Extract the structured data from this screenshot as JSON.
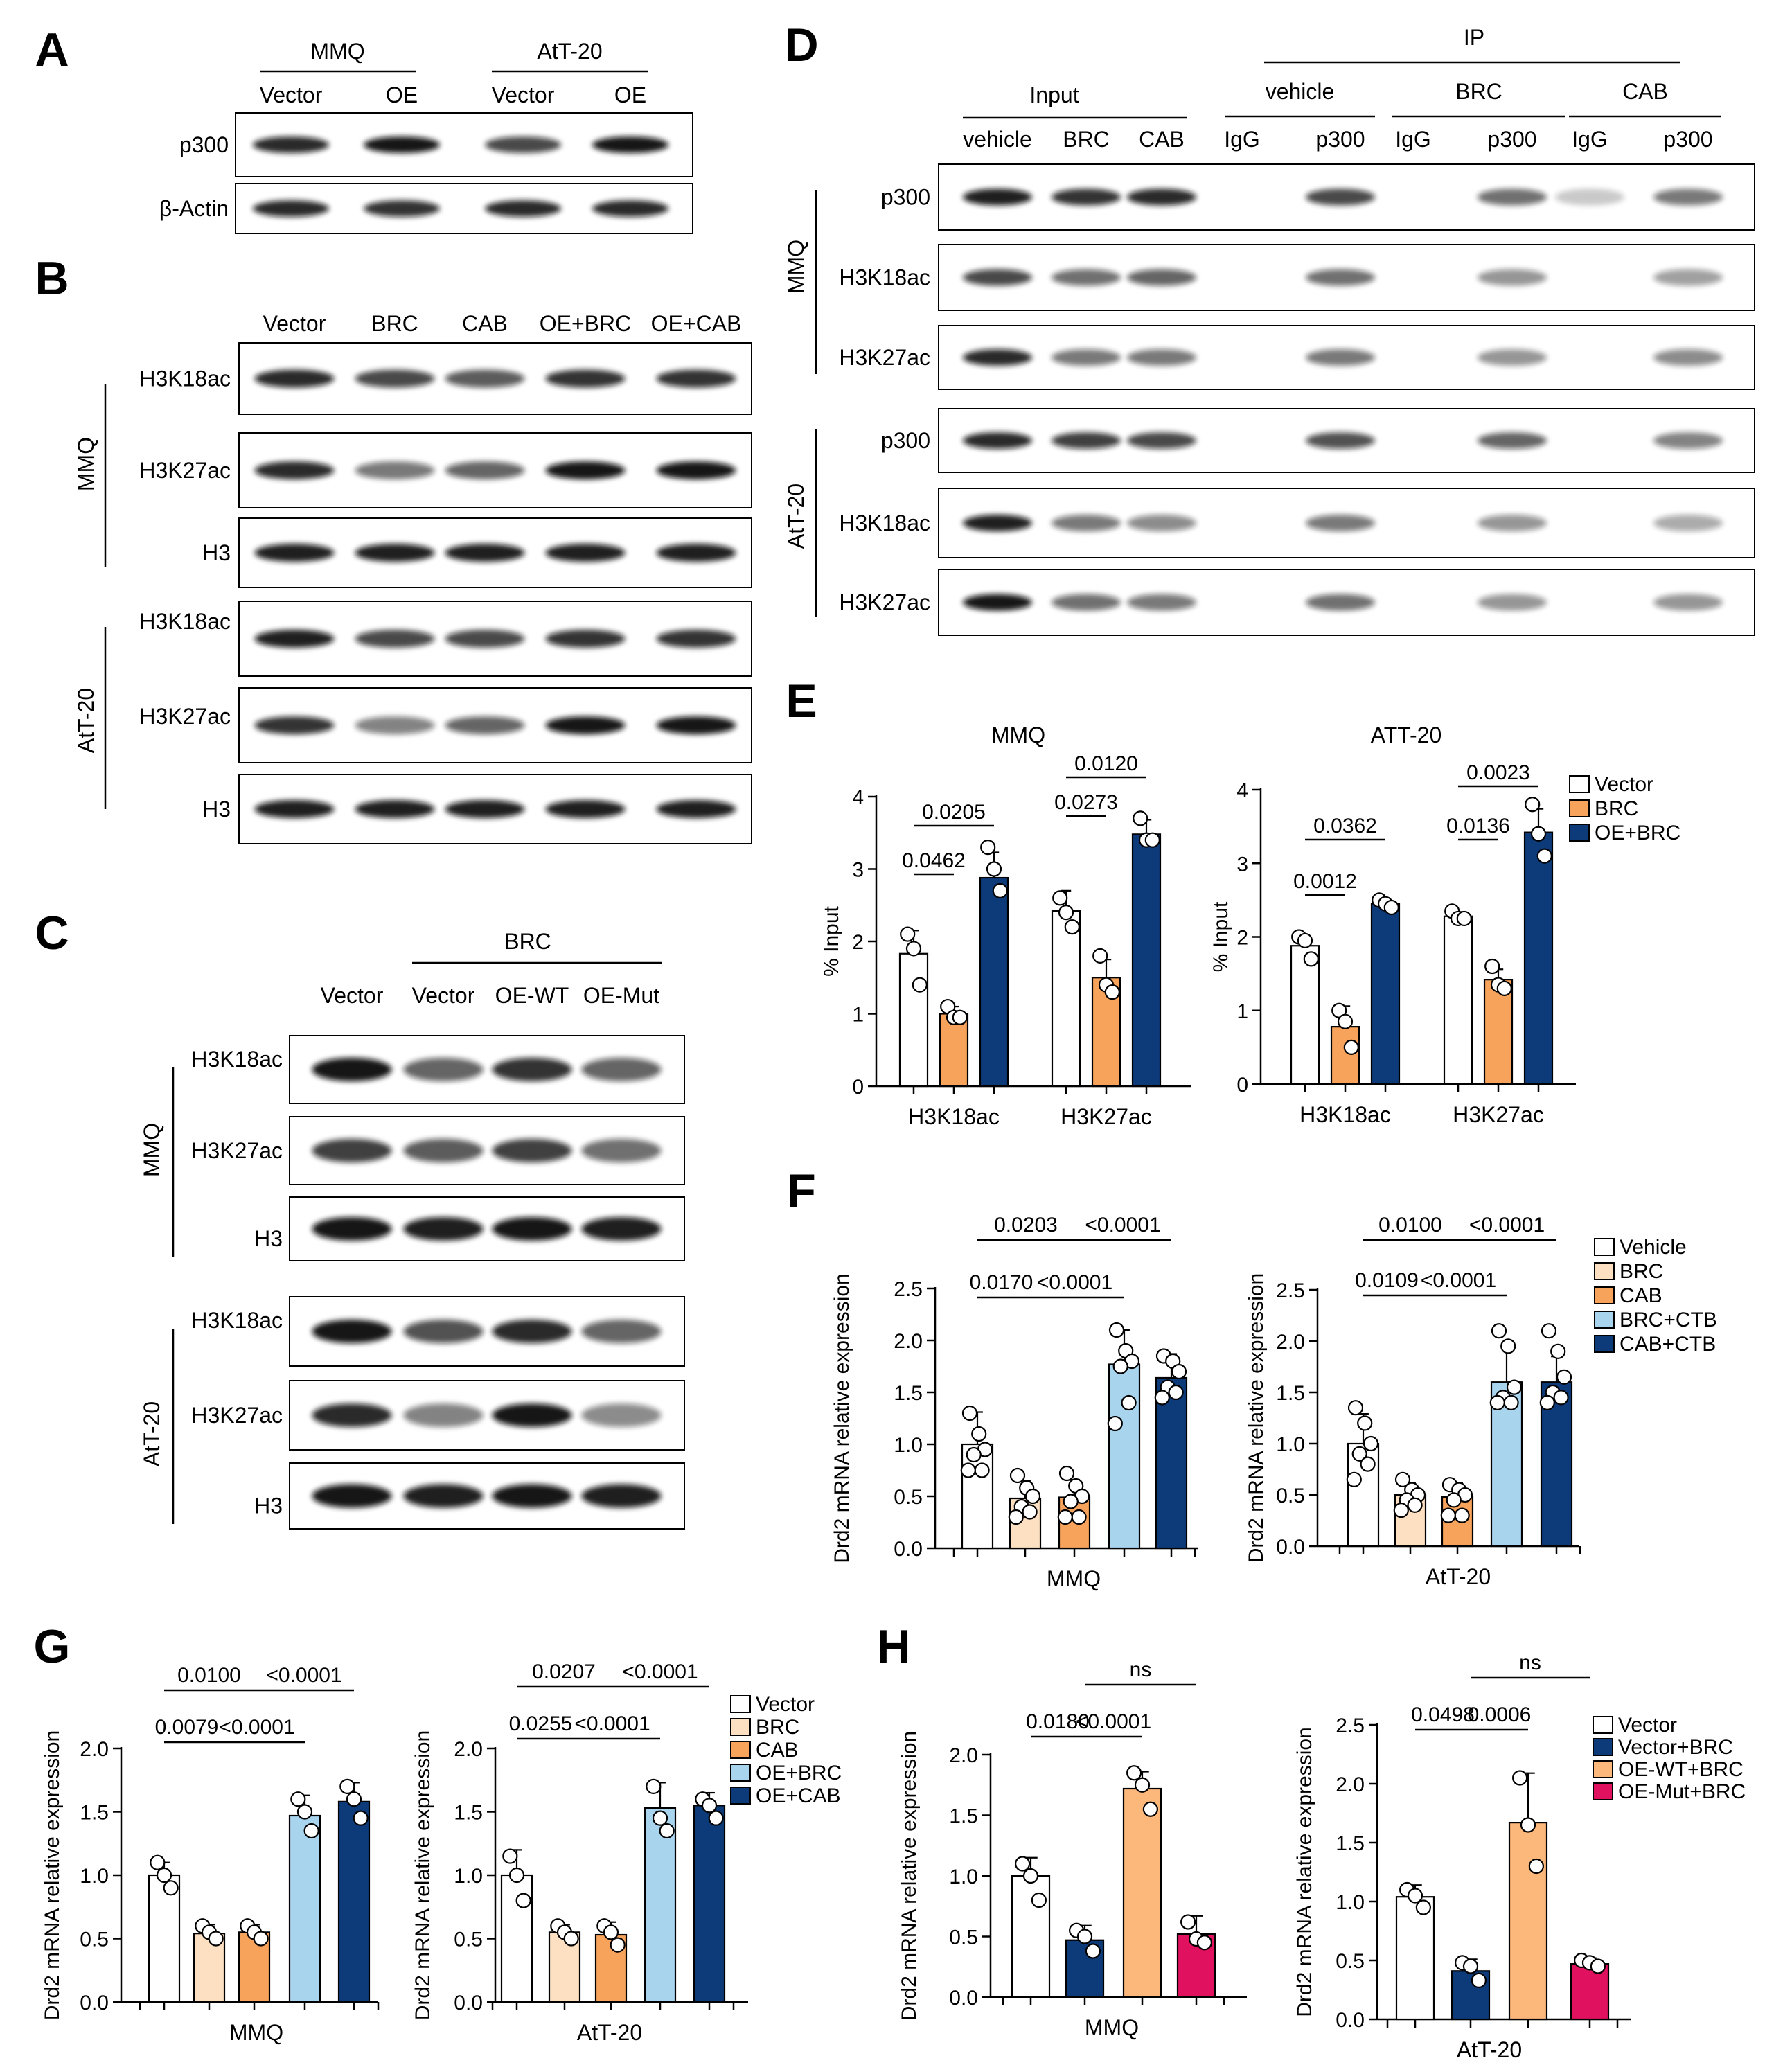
{
  "panels": {
    "A": {
      "letter": "A",
      "groups": [
        "MMQ",
        "AtT-20"
      ],
      "lanes": [
        "Vector",
        "OE",
        "Vector",
        "OE"
      ],
      "blots": [
        "p300",
        "β-Actin"
      ],
      "intensity": [
        [
          0.85,
          0.95,
          0.7,
          0.95
        ],
        [
          0.85,
          0.8,
          0.85,
          0.85
        ]
      ]
    },
    "B": {
      "letter": "B",
      "lanes": [
        "Vector",
        "BRC",
        "CAB",
        "OE+BRC",
        "OE+CAB"
      ],
      "groups": [
        "MMQ",
        "AtT-20"
      ],
      "blots": [
        "H3K18ac",
        "H3K27ac",
        "H3",
        "H3K18ac",
        "H3K27ac",
        "H3"
      ],
      "intensity": [
        [
          0.85,
          0.7,
          0.6,
          0.8,
          0.8
        ],
        [
          0.85,
          0.45,
          0.55,
          0.95,
          0.95
        ],
        [
          0.9,
          0.9,
          0.9,
          0.9,
          0.9
        ],
        [
          0.9,
          0.7,
          0.7,
          0.8,
          0.8
        ],
        [
          0.8,
          0.4,
          0.55,
          0.95,
          0.95
        ],
        [
          0.9,
          0.9,
          0.9,
          0.9,
          0.9
        ]
      ]
    },
    "C": {
      "letter": "C",
      "treatment": "BRC",
      "lanes": [
        "Vector",
        "Vector",
        "OE-WT",
        "OE-Mut"
      ],
      "groups": [
        "MMQ",
        "AtT-20"
      ],
      "blots": [
        "H3K18ac",
        "H3K27ac",
        "H3",
        "H3K18ac",
        "H3K27ac",
        "H3"
      ],
      "intensity": [
        [
          0.95,
          0.55,
          0.8,
          0.55
        ],
        [
          0.75,
          0.6,
          0.75,
          0.5
        ],
        [
          0.95,
          0.9,
          0.95,
          0.9
        ],
        [
          0.95,
          0.65,
          0.85,
          0.55
        ],
        [
          0.85,
          0.4,
          0.95,
          0.35
        ],
        [
          0.95,
          0.9,
          0.95,
          0.9
        ]
      ]
    },
    "D": {
      "letter": "D",
      "input_label": "Input",
      "ip_label": "IP",
      "input_lanes": [
        "vehicle",
        "BRC",
        "CAB"
      ],
      "ip_groups": [
        "vehicle",
        "BRC",
        "CAB"
      ],
      "ip_lanes": [
        "IgG",
        "p300",
        "IgG",
        "p300",
        "IgG",
        "p300"
      ],
      "groups": [
        "MMQ",
        "AtT-20"
      ],
      "blots": [
        "p300",
        "H3K18ac",
        "H3K27ac",
        "p300",
        "H3K18ac",
        "H3K27ac"
      ],
      "intensity": [
        [
          0.9,
          0.8,
          0.85,
          0.02,
          0.7,
          0.02,
          0.5,
          0.05,
          0.45
        ],
        [
          0.7,
          0.5,
          0.55,
          0.02,
          0.5,
          0.02,
          0.3,
          0.02,
          0.25
        ],
        [
          0.85,
          0.45,
          0.45,
          0.02,
          0.45,
          0.02,
          0.3,
          0.02,
          0.35
        ],
        [
          0.85,
          0.75,
          0.7,
          0.02,
          0.65,
          0.02,
          0.55,
          0.02,
          0.4
        ],
        [
          0.9,
          0.45,
          0.35,
          0.02,
          0.45,
          0.02,
          0.3,
          0.02,
          0.2
        ],
        [
          0.95,
          0.5,
          0.45,
          0.02,
          0.5,
          0.02,
          0.3,
          0.02,
          0.3
        ]
      ]
    },
    "E": {
      "letter": "E"
    },
    "F": {
      "letter": "F"
    },
    "G": {
      "letter": "G"
    },
    "H": {
      "letter": "H"
    }
  },
  "chart_data": [
    {
      "id": "E-MMQ",
      "type": "bar",
      "title": "MMQ",
      "ylabel": "% Input",
      "ylim": [
        0,
        4
      ],
      "yticks": [
        "0",
        "1",
        "2",
        "3",
        "4"
      ],
      "categories": [
        "H3K18ac",
        "H3K27ac"
      ],
      "series": [
        {
          "name": "Vector",
          "color": "#ffffff",
          "values": [
            1.83,
            2.42
          ],
          "err": [
            0.32,
            0.28
          ],
          "points": [
            [
              2.1,
              1.9,
              1.4
            ],
            [
              2.6,
              2.4,
              2.2
            ]
          ]
        },
        {
          "name": "BRC",
          "color": "#f7a35c",
          "values": [
            1.0,
            1.5
          ],
          "err": [
            0.1,
            0.25
          ],
          "points": [
            [
              1.1,
              0.95,
              0.95
            ],
            [
              1.8,
              1.4,
              1.3
            ]
          ]
        },
        {
          "name": "OE+BRC",
          "color": "#0d3b7a",
          "values": [
            2.88,
            3.48
          ],
          "err": [
            0.35,
            0.2
          ],
          "points": [
            [
              3.3,
              3.0,
              2.7
            ],
            [
              3.7,
              3.4,
              3.4
            ]
          ]
        }
      ],
      "significance": [
        {
          "label": "0.0462",
          "from": [
            0,
            0
          ],
          "to": [
            0,
            1
          ]
        },
        {
          "label": "0.0205",
          "from": [
            0,
            0
          ],
          "to": [
            0,
            2
          ]
        },
        {
          "label": "0.0273",
          "from": [
            1,
            0
          ],
          "to": [
            1,
            1
          ]
        },
        {
          "label": "0.0120",
          "from": [
            1,
            0
          ],
          "to": [
            1,
            2
          ]
        }
      ]
    },
    {
      "id": "E-ATT",
      "type": "bar",
      "title": "ATT-20",
      "ylabel": "% Input",
      "ylim": [
        0,
        4
      ],
      "yticks": [
        "0",
        "1",
        "2",
        "3",
        "4"
      ],
      "categories": [
        "H3K18ac",
        "H3K27ac"
      ],
      "series": [
        {
          "name": "Vector",
          "color": "#ffffff",
          "values": [
            1.88,
            2.28
          ],
          "err": [
            0.12,
            0.06
          ],
          "points": [
            [
              2.0,
              1.95,
              1.7
            ],
            [
              2.35,
              2.25,
              2.25
            ]
          ]
        },
        {
          "name": "BRC",
          "color": "#f7a35c",
          "values": [
            0.78,
            1.42
          ],
          "err": [
            0.28,
            0.14
          ],
          "points": [
            [
              1.0,
              0.85,
              0.5
            ],
            [
              1.6,
              1.35,
              1.3
            ]
          ]
        },
        {
          "name": "OE+BRC",
          "color": "#0d3b7a",
          "values": [
            2.45,
            3.42
          ],
          "err": [
            0.06,
            0.32
          ],
          "points": [
            [
              2.5,
              2.45,
              2.4
            ],
            [
              3.8,
              3.4,
              3.1
            ]
          ]
        }
      ],
      "significance": [
        {
          "label": "0.0012",
          "from": [
            0,
            0
          ],
          "to": [
            0,
            1
          ]
        },
        {
          "label": "0.0362",
          "from": [
            0,
            0
          ],
          "to": [
            0,
            2
          ]
        },
        {
          "label": "0.0136",
          "from": [
            1,
            0
          ],
          "to": [
            1,
            1
          ]
        },
        {
          "label": "0.0023",
          "from": [
            1,
            0
          ],
          "to": [
            1,
            2
          ]
        }
      ],
      "legend": [
        "Vector",
        "BRC",
        "OE+BRC"
      ]
    },
    {
      "id": "F-MMQ",
      "type": "bar",
      "xlabel": "MMQ",
      "ylabel": "Drd2 mRNA relative expression",
      "ylim": [
        0,
        2.5
      ],
      "yticks": [
        "0.0",
        "0.5",
        "1.0",
        "1.5",
        "2.0",
        "2.5"
      ],
      "categories": [
        "Vehicle",
        "BRC",
        "CAB",
        "BRC+CTB",
        "CAB+CTB"
      ],
      "colors": [
        "#ffffff",
        "#fde0c2",
        "#f7a35c",
        "#a8d4ee",
        "#0d3b7a"
      ],
      "values": [
        1.0,
        0.48,
        0.49,
        1.77,
        1.64
      ],
      "err": [
        0.31,
        0.17,
        0.17,
        0.33,
        0.23
      ],
      "points": [
        [
          1.3,
          1.1,
          0.95,
          0.9,
          0.75,
          0.75
        ],
        [
          0.7,
          0.58,
          0.5,
          0.4,
          0.35,
          0.3
        ],
        [
          0.72,
          0.6,
          0.5,
          0.45,
          0.3,
          0.3
        ],
        [
          2.1,
          1.9,
          1.8,
          1.75,
          1.4,
          1.2
        ],
        [
          1.85,
          1.8,
          1.7,
          1.55,
          1.5,
          1.45
        ]
      ],
      "significance": [
        {
          "label": "0.0170",
          "from": 0,
          "to": 1
        },
        {
          "label": "0.0203",
          "from": 0,
          "to": 2
        },
        {
          "label": "<0.0001",
          "from": 1,
          "to": 3
        },
        {
          "label": "<0.0001",
          "from": 2,
          "to": 4
        }
      ]
    },
    {
      "id": "F-ATT",
      "type": "bar",
      "xlabel": "AtT-20",
      "ylabel": "Drd2 mRNA relative expression",
      "ylim": [
        0,
        2.5
      ],
      "yticks": [
        "0.0",
        "0.5",
        "1.0",
        "1.5",
        "2.0",
        "2.5"
      ],
      "categories": [
        "Vehicle",
        "BRC",
        "CAB",
        "BRC+CTB",
        "CAB+CTB"
      ],
      "colors": [
        "#ffffff",
        "#fde0c2",
        "#f7a35c",
        "#a8d4ee",
        "#0d3b7a"
      ],
      "values": [
        1.0,
        0.5,
        0.48,
        1.6,
        1.6
      ],
      "err": [
        0.29,
        0.12,
        0.14,
        0.33,
        0.25
      ],
      "points": [
        [
          1.35,
          1.2,
          1.0,
          0.9,
          0.8,
          0.65
        ],
        [
          0.65,
          0.55,
          0.5,
          0.45,
          0.4,
          0.35
        ],
        [
          0.6,
          0.55,
          0.5,
          0.45,
          0.3,
          0.3
        ],
        [
          2.1,
          1.95,
          1.55,
          1.45,
          1.4,
          1.4
        ],
        [
          2.1,
          1.9,
          1.65,
          1.5,
          1.45,
          1.4
        ]
      ],
      "significance": [
        {
          "label": "0.0109",
          "from": 0,
          "to": 1
        },
        {
          "label": "0.0100",
          "from": 0,
          "to": 2
        },
        {
          "label": "<0.0001",
          "from": 1,
          "to": 3
        },
        {
          "label": "<0.0001",
          "from": 2,
          "to": 4
        }
      ],
      "legend": [
        "Vehicle",
        "BRC",
        "CAB",
        "BRC+CTB",
        "CAB+CTB"
      ]
    },
    {
      "id": "G-MMQ",
      "type": "bar",
      "xlabel": "MMQ",
      "ylabel": "Drd2 mRNA relative expression",
      "ylim": [
        0,
        2.0
      ],
      "yticks": [
        "0.0",
        "0.5",
        "1.0",
        "1.5",
        "2.0"
      ],
      "categories": [
        "Vector",
        "BRC",
        "CAB",
        "OE+BRC",
        "OE+CAB"
      ],
      "colors": [
        "#ffffff",
        "#fde0c2",
        "#f7a35c",
        "#a8d4ee",
        "#0d3b7a"
      ],
      "values": [
        1.0,
        0.54,
        0.55,
        1.47,
        1.58
      ],
      "err": [
        0.1,
        0.07,
        0.06,
        0.16,
        0.15
      ],
      "points": [
        [
          1.1,
          1.0,
          0.9
        ],
        [
          0.6,
          0.55,
          0.5
        ],
        [
          0.6,
          0.55,
          0.5
        ],
        [
          1.6,
          1.5,
          1.35
        ],
        [
          1.7,
          1.6,
          1.45
        ]
      ],
      "significance": [
        {
          "label": "0.0079",
          "from": 0,
          "to": 1
        },
        {
          "label": "0.0100",
          "from": 0,
          "to": 2
        },
        {
          "label": "<0.0001",
          "from": 1,
          "to": 3
        },
        {
          "label": "<0.0001",
          "from": 2,
          "to": 4
        }
      ]
    },
    {
      "id": "G-ATT",
      "type": "bar",
      "xlabel": "AtT-20",
      "ylabel": "Drd2 mRNA relative expression",
      "ylim": [
        0,
        2.0
      ],
      "yticks": [
        "0.0",
        "0.5",
        "1.0",
        "1.5",
        "2.0"
      ],
      "categories": [
        "Vector",
        "BRC",
        "CAB",
        "OE+BRC",
        "OE+CAB"
      ],
      "colors": [
        "#ffffff",
        "#fde0c2",
        "#f7a35c",
        "#a8d4ee",
        "#0d3b7a"
      ],
      "values": [
        1.0,
        0.55,
        0.53,
        1.53,
        1.55
      ],
      "err": [
        0.2,
        0.06,
        0.1,
        0.2,
        0.1
      ],
      "points": [
        [
          1.15,
          1.0,
          0.8
        ],
        [
          0.6,
          0.55,
          0.5
        ],
        [
          0.6,
          0.55,
          0.45
        ],
        [
          1.7,
          1.45,
          1.35
        ],
        [
          1.6,
          1.55,
          1.45
        ]
      ],
      "significance": [
        {
          "label": "0.0255",
          "from": 0,
          "to": 1
        },
        {
          "label": "0.0207",
          "from": 0,
          "to": 2
        },
        {
          "label": "<0.0001",
          "from": 1,
          "to": 3
        },
        {
          "label": "<0.0001",
          "from": 2,
          "to": 4
        }
      ],
      "legend": [
        "Vector",
        "BRC",
        "CAB",
        "OE+BRC",
        "OE+CAB"
      ]
    },
    {
      "id": "H-MMQ",
      "type": "bar",
      "xlabel": "MMQ",
      "ylabel": "Drd2 mRNA relative expression",
      "ylim": [
        0,
        2.0
      ],
      "yticks": [
        "0.0",
        "0.5",
        "1.0",
        "1.5",
        "2.0"
      ],
      "categories": [
        "Vector",
        "Vector+BRC",
        "OE-WT+BRC",
        "OE-Mut+BRC"
      ],
      "colors": [
        "#ffffff",
        "#0d3b7a",
        "#fcb77a",
        "#e0115f"
      ],
      "values": [
        1.0,
        0.47,
        1.72,
        0.52
      ],
      "err": [
        0.15,
        0.12,
        0.14,
        0.15
      ],
      "points": [
        [
          1.1,
          1.0,
          0.8
        ],
        [
          0.55,
          0.5,
          0.38
        ],
        [
          1.85,
          1.75,
          1.55
        ],
        [
          0.62,
          0.48,
          0.45
        ]
      ],
      "significance": [
        {
          "label": "0.0180",
          "from": 0,
          "to": 1
        },
        {
          "label": "<0.0001",
          "from": 1,
          "to": 2
        },
        {
          "label": "ns",
          "from": 1,
          "to": 3
        }
      ]
    },
    {
      "id": "H-ATT",
      "type": "bar",
      "xlabel": "AtT-20",
      "ylabel": "Drd2 mRNA relative expression",
      "ylim": [
        0,
        2.5
      ],
      "yticks": [
        "0.0",
        "0.5",
        "1.0",
        "1.5",
        "2.0",
        "2.5"
      ],
      "categories": [
        "Vector",
        "Vector+BRC",
        "OE-WT+BRC",
        "OE-Mut+BRC"
      ],
      "colors": [
        "#ffffff",
        "#0d3b7a",
        "#fcb77a",
        "#e0115f"
      ],
      "values": [
        1.04,
        0.41,
        1.67,
        0.47
      ],
      "err": [
        0.1,
        0.1,
        0.42,
        0.05
      ],
      "points": [
        [
          1.1,
          1.05,
          0.95
        ],
        [
          0.48,
          0.45,
          0.33
        ],
        [
          2.05,
          1.65,
          1.3
        ],
        [
          0.5,
          0.48,
          0.45
        ]
      ],
      "significance": [
        {
          "label": "0.0498",
          "from": 0,
          "to": 1
        },
        {
          "label": "0.0006",
          "from": 1,
          "to": 2
        },
        {
          "label": "ns",
          "from": 1,
          "to": 3
        }
      ],
      "legend": [
        "Vector",
        "Vector+BRC",
        "OE-WT+BRC",
        "OE-Mut+BRC"
      ]
    }
  ]
}
